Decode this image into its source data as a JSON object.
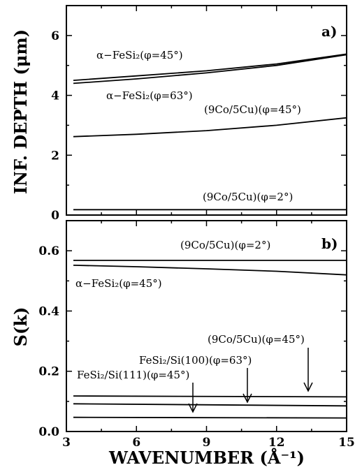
{
  "chart_data": [
    {
      "panel": "a)",
      "type": "line",
      "ylabel": "INF. DEPTH (μm)",
      "xlim": [
        3,
        15
      ],
      "ylim": [
        0,
        7
      ],
      "xticks": [
        3,
        6,
        9,
        12,
        15
      ],
      "yticks": [
        0,
        2,
        4,
        6
      ],
      "series": [
        {
          "name": "α−FeSi₂(φ=45°)",
          "x": [
            3.3,
            6,
            9,
            12,
            15
          ],
          "y": [
            4.5,
            4.65,
            4.82,
            5.05,
            5.38
          ]
        },
        {
          "name": "α−FeSi₂(φ=63°)",
          "x": [
            3.3,
            6,
            9,
            12,
            15
          ],
          "y": [
            4.4,
            4.55,
            4.75,
            5.0,
            5.36
          ]
        },
        {
          "name": "(9Co/5Cu)(φ=45°)",
          "x": [
            3.3,
            6,
            9,
            12,
            15
          ],
          "y": [
            2.62,
            2.7,
            2.82,
            3.0,
            3.25
          ]
        },
        {
          "name": "(9Co/5Cu)(φ=2°)",
          "x": [
            3.3,
            15
          ],
          "y": [
            0.18,
            0.18
          ]
        }
      ]
    },
    {
      "panel": "b)",
      "type": "line",
      "xlabel": "WAVENUMBER (Å⁻¹)",
      "ylabel": "S(k)",
      "xlim": [
        3,
        15
      ],
      "ylim": [
        0,
        0.7
      ],
      "xticks": [
        3,
        6,
        9,
        12,
        15
      ],
      "yticks": [
        0.0,
        0.2,
        0.4,
        0.6
      ],
      "yticklabels": [
        "0.0",
        "0.2",
        "0.4",
        "0.6"
      ],
      "series": [
        {
          "name": "(9Co/5Cu)(φ=2°)",
          "x": [
            3.3,
            15
          ],
          "y": [
            0.568,
            0.568
          ]
        },
        {
          "name": "α−FeSi₂(φ=45°)",
          "x": [
            3.3,
            6,
            9,
            12,
            15
          ],
          "y": [
            0.552,
            0.547,
            0.54,
            0.532,
            0.52
          ]
        },
        {
          "name": "(9Co/5Cu)(φ=45°)",
          "x": [
            3.3,
            15
          ],
          "y": [
            0.118,
            0.115
          ]
        },
        {
          "name": "FeSi₂/Si(100)(φ=63°)",
          "x": [
            3.3,
            15
          ],
          "y": [
            0.092,
            0.085
          ]
        },
        {
          "name": "FeSi₂/Si(111)(φ=45°)",
          "x": [
            3.3,
            15
          ],
          "y": [
            0.047,
            0.045
          ]
        }
      ]
    }
  ],
  "annotations": {
    "a_fesi2_45": "α−FeSi₂(φ=45°)",
    "a_fesi2_63": "α−FeSi₂(φ=63°)",
    "a_co_45": "(9Co/5Cu)(φ=45°)",
    "a_co_2": "(9Co/5Cu)(φ=2°)",
    "b_co_2": "(9Co/5Cu)(φ=2°)",
    "b_fesi2_45": "α−FeSi₂(φ=45°)",
    "b_co_45": "(9Co/5Cu)(φ=45°)",
    "b_si100": "FeSi₂/Si(100)(φ=63°)",
    "b_si111": "FeSi₂/Si(111)(φ=45°)"
  }
}
